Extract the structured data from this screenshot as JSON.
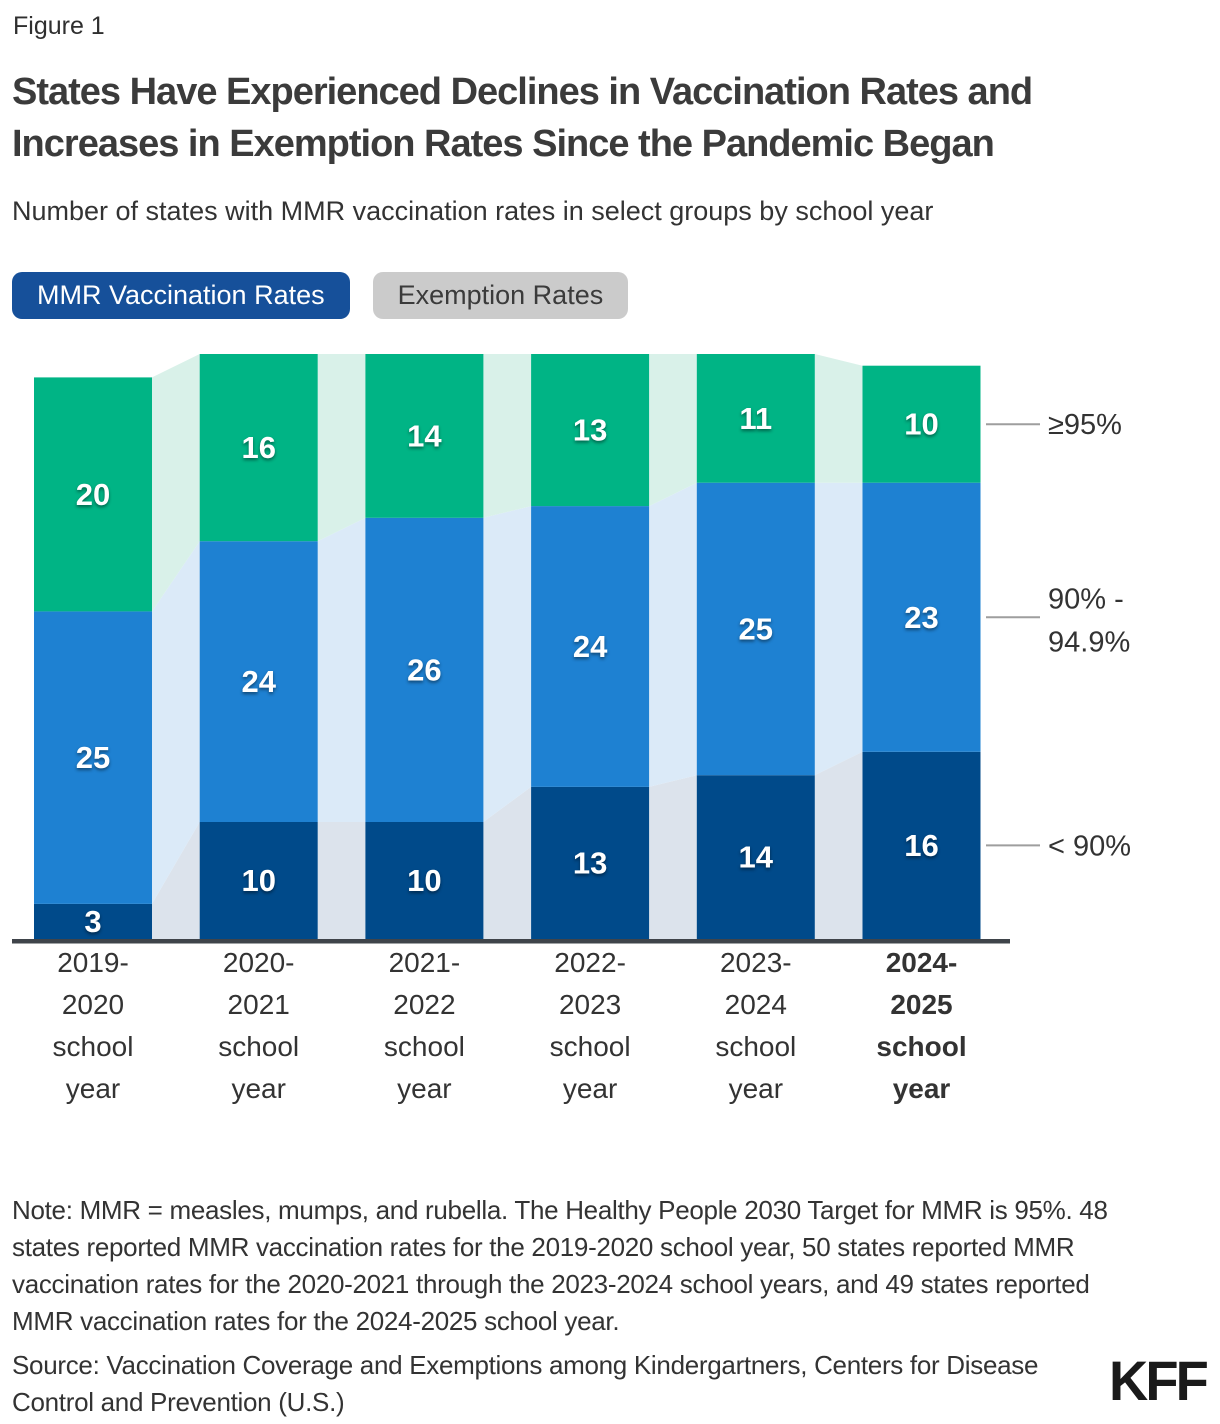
{
  "figure_label": "Figure 1",
  "title": "States Have Experienced Declines in Vaccination Rates and Increases in Exemption Rates Since the Pandemic Began",
  "subtitle": "Number of states with MMR vaccination rates in select groups by school year",
  "tabs": [
    {
      "label": "MMR Vaccination Rates",
      "active": true
    },
    {
      "label": "Exemption Rates",
      "active": false
    }
  ],
  "chart_data": {
    "type": "bar",
    "stacked": true,
    "title": "Number of states with MMR vaccination rates in select groups by school year",
    "xlabel": "",
    "ylabel": "Number of states",
    "ylim": [
      0,
      50
    ],
    "grid": false,
    "legend_position": "right-of-last-bar",
    "categories": [
      "2019-2020 school year",
      "2020-2021 school year",
      "2021-2022 school year",
      "2022-2023 school year",
      "2023-2024 school year",
      "2024-2025 school year"
    ],
    "category_label_lines": [
      [
        "2019-",
        "2020",
        "school",
        "year"
      ],
      [
        "2020-",
        "2021",
        "school",
        "year"
      ],
      [
        "2021-",
        "2022",
        "school",
        "year"
      ],
      [
        "2022-",
        "2023",
        "school",
        "year"
      ],
      [
        "2023-",
        "2024",
        "school",
        "year"
      ],
      [
        "2024-",
        "2025",
        "school",
        "year"
      ]
    ],
    "category_emphasis": [
      false,
      false,
      false,
      false,
      false,
      true
    ],
    "totals_reported": [
      48,
      50,
      50,
      50,
      50,
      49
    ],
    "series": [
      {
        "name": "< 90%",
        "values": [
          3,
          10,
          10,
          13,
          14,
          16
        ],
        "color": "#004a8a",
        "ribbon_color": "#dce3ec"
      },
      {
        "name": "90% - 94.9%",
        "values": [
          25,
          24,
          26,
          24,
          25,
          23
        ],
        "color": "#1e81d2",
        "ribbon_color": "#dbeaf8"
      },
      {
        "name": "≥95%",
        "values": [
          20,
          16,
          14,
          13,
          11,
          10
        ],
        "color": "#00b485",
        "ribbon_color": "#d9f1e9"
      }
    ],
    "right_labels": [
      {
        "series": "≥95%",
        "lines": [
          "≥95%"
        ]
      },
      {
        "series": "90% - 94.9%",
        "lines": [
          "90% -",
          "94.9%"
        ]
      },
      {
        "series": "< 90%",
        "lines": [
          "< 90%"
        ]
      }
    ]
  },
  "note": "Note: MMR = measles, mumps, and rubella. The Healthy People 2030 Target for MMR is 95%. 48 states reported MMR vaccination rates for the 2019-2020 school year, 50 states reported MMR vaccination rates for the 2020-2021 through the 2023-2024 school years, and 49 states reported MMR vaccination rates for the 2024-2025 school year.",
  "source": "Source: Vaccination Coverage and Exemptions among Kindergartners, Centers for Disease Control and Prevention (U.S.)",
  "logo_text": "KFF",
  "colors": {
    "tab_active_bg": "#16509a",
    "tab_inactive_bg": "#cbcbcb",
    "axis": "#3f444a",
    "leader_line": "#9e9e9e",
    "value_label": "#ffffff",
    "text": "#333333"
  }
}
